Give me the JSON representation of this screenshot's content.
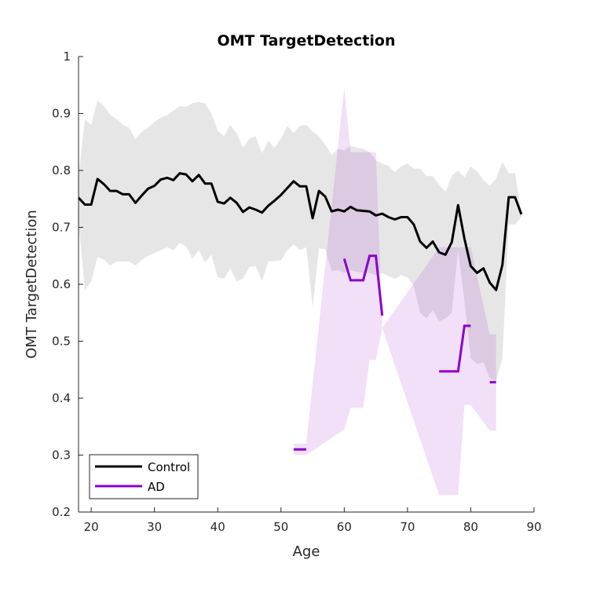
{
  "chart_data": {
    "type": "line",
    "title": "OMT TargetDetection",
    "xlabel": "Age",
    "ylabel": "OMT TargetDetection",
    "xlim": [
      18,
      90
    ],
    "ylim": [
      0.2,
      1.0
    ],
    "xticks": [
      20,
      30,
      40,
      50,
      60,
      70,
      80,
      90
    ],
    "yticks": [
      0.2,
      0.3,
      0.4,
      0.5,
      0.6,
      0.7,
      0.8,
      0.9,
      1.0
    ],
    "xtick_labels": [
      "20",
      "30",
      "40",
      "50",
      "60",
      "70",
      "80",
      "90"
    ],
    "ytick_labels": [
      "0.2",
      "0.3",
      "0.4",
      "0.5",
      "0.6",
      "0.7",
      "0.8",
      "0.9",
      "1"
    ],
    "grid": false,
    "legend_position": "bottom-left",
    "series": [
      {
        "name": "Control",
        "color": "#000000",
        "x": [
          18,
          19,
          20,
          21,
          22,
          23,
          24,
          25,
          26,
          27,
          28,
          29,
          30,
          31,
          32,
          33,
          34,
          35,
          36,
          37,
          38,
          39,
          40,
          41,
          42,
          43,
          44,
          45,
          46,
          47,
          48,
          49,
          50,
          51,
          52,
          53,
          54,
          55,
          56,
          57,
          58,
          59,
          60,
          61,
          62,
          63,
          64,
          65,
          66,
          67,
          68,
          69,
          70,
          71,
          72,
          73,
          74,
          75,
          76,
          77,
          78,
          79,
          80,
          81,
          82,
          83,
          84,
          85,
          86,
          87,
          88
        ],
        "y": [
          0.752,
          0.74,
          0.74,
          0.785,
          0.776,
          0.764,
          0.764,
          0.758,
          0.758,
          0.743,
          0.756,
          0.768,
          0.773,
          0.784,
          0.787,
          0.783,
          0.795,
          0.793,
          0.781,
          0.792,
          0.777,
          0.777,
          0.745,
          0.742,
          0.752,
          0.743,
          0.727,
          0.735,
          0.731,
          0.726,
          0.738,
          0.747,
          0.757,
          0.769,
          0.781,
          0.772,
          0.772,
          0.716,
          0.764,
          0.754,
          0.728,
          0.731,
          0.728,
          0.736,
          0.73,
          0.729,
          0.728,
          0.721,
          0.724,
          0.718,
          0.714,
          0.718,
          0.718,
          0.705,
          0.675,
          0.664,
          0.675,
          0.656,
          0.652,
          0.674,
          0.739,
          0.68,
          0.632,
          0.62,
          0.628,
          0.603,
          0.59,
          0.634,
          0.753,
          0.753,
          0.723
        ],
        "upper": [
          0.79,
          0.89,
          0.88,
          0.923,
          0.913,
          0.898,
          0.89,
          0.88,
          0.875,
          0.855,
          0.868,
          0.875,
          0.885,
          0.893,
          0.897,
          0.905,
          0.913,
          0.912,
          0.918,
          0.92,
          0.918,
          0.9,
          0.87,
          0.86,
          0.88,
          0.865,
          0.84,
          0.856,
          0.86,
          0.83,
          0.852,
          0.84,
          0.856,
          0.878,
          0.866,
          0.878,
          0.88,
          0.868,
          0.86,
          0.845,
          0.827,
          0.838,
          0.835,
          0.843,
          0.84,
          0.838,
          0.832,
          0.818,
          0.812,
          0.808,
          0.797,
          0.807,
          0.812,
          0.803,
          0.803,
          0.79,
          0.79,
          0.775,
          0.762,
          0.79,
          0.8,
          0.788,
          0.807,
          0.798,
          0.783,
          0.773,
          0.785,
          0.815,
          0.795,
          0.795,
          0.725
        ],
        "lower": [
          0.71,
          0.59,
          0.605,
          0.648,
          0.643,
          0.633,
          0.64,
          0.64,
          0.64,
          0.633,
          0.643,
          0.65,
          0.655,
          0.66,
          0.665,
          0.66,
          0.673,
          0.667,
          0.645,
          0.66,
          0.638,
          0.652,
          0.612,
          0.61,
          0.628,
          0.605,
          0.61,
          0.63,
          0.632,
          0.606,
          0.64,
          0.641,
          0.642,
          0.66,
          0.67,
          0.66,
          0.665,
          0.56,
          0.663,
          0.662,
          0.623,
          0.625,
          0.62,
          0.625,
          0.622,
          0.62,
          0.62,
          0.616,
          0.62,
          0.614,
          0.61,
          0.616,
          0.612,
          0.597,
          0.55,
          0.54,
          0.555,
          0.535,
          0.54,
          0.55,
          0.66,
          0.57,
          0.47,
          0.46,
          0.463,
          0.435,
          0.43,
          0.47,
          0.705,
          0.705,
          0.718
        ]
      },
      {
        "name": "AD",
        "color": "#8B00C9",
        "segments": [
          {
            "x": [
              52,
              54
            ],
            "y": [
              0.31,
              0.31
            ],
            "upper": [
              0.32,
              0.32
            ],
            "lower": [
              0.3,
              0.3
            ]
          },
          {
            "x": [
              60,
              61,
              62,
              63,
              64,
              65,
              66
            ],
            "y": [
              0.645,
              0.607,
              0.607,
              0.607,
              0.65,
              0.65,
              0.545
            ],
            "upper": [
              0.945,
              0.832,
              0.832,
              0.832,
              0.832,
              0.832,
              0.523
            ],
            "lower": [
              0.345,
              0.383,
              0.383,
              0.383,
              0.467,
              0.467,
              0.523
            ]
          },
          {
            "x": [
              75,
              76,
              77,
              78,
              79,
              80
            ],
            "y": [
              0.447,
              0.447,
              0.447,
              0.447,
              0.527,
              0.527
            ],
            "upper": [
              0.665,
              0.665,
              0.665,
              0.665,
              0.665,
              0.665
            ],
            "lower": [
              0.23,
              0.23,
              0.23,
              0.23,
              0.388,
              0.388
            ]
          },
          {
            "x": [
              83,
              84
            ],
            "y": [
              0.428,
              0.428
            ],
            "upper": [
              0.512,
              0.512
            ],
            "lower": [
              0.343,
              0.343
            ]
          }
        ]
      }
    ]
  }
}
